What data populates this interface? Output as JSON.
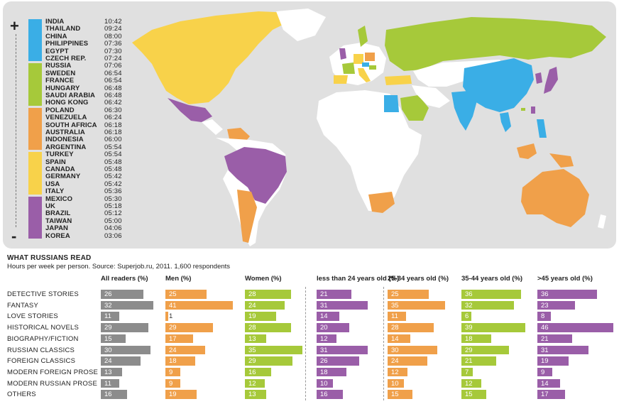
{
  "map": {
    "plus_sign": "+",
    "minus_sign": "-",
    "groups": [
      {
        "color": "#3aaee6",
        "countries": [
          {
            "name": "INDIA",
            "time": "10:42"
          },
          {
            "name": "THAILAND",
            "time": "09:24"
          },
          {
            "name": "CHINA",
            "time": "08:00"
          },
          {
            "name": "PHILIPPINES",
            "time": "07:36"
          },
          {
            "name": "EGYPT",
            "time": "07:30"
          },
          {
            "name": "CZECH REP.",
            "time": "07:24"
          }
        ]
      },
      {
        "color": "#a6c93a",
        "countries": [
          {
            "name": "RUSSIA",
            "time": "07:06"
          },
          {
            "name": "SWEDEN",
            "time": "06:54"
          },
          {
            "name": "FRANCE",
            "time": "06:54"
          },
          {
            "name": "HUNGARY",
            "time": "06:48"
          },
          {
            "name": "SAUDI ARABIA",
            "time": "06:48"
          },
          {
            "name": "HONG KONG",
            "time": "06:42"
          }
        ]
      },
      {
        "color": "#f0a04a",
        "countries": [
          {
            "name": "POLAND",
            "time": "06:30"
          },
          {
            "name": "VENEZUELA",
            "time": "06:24"
          },
          {
            "name": "SOUTH AFRICA",
            "time": "06:18"
          },
          {
            "name": "AUSTRALIA",
            "time": "06:18"
          },
          {
            "name": "INDONESIA",
            "time": "06:00"
          },
          {
            "name": "ARGENTINA",
            "time": "05:54"
          }
        ]
      },
      {
        "color": "#f8d24a",
        "countries": [
          {
            "name": "TURKEY",
            "time": "05:54"
          },
          {
            "name": "SPAIN",
            "time": "05:48"
          },
          {
            "name": "CANADA",
            "time": "05:48"
          },
          {
            "name": "GERMANY",
            "time": "05:42"
          },
          {
            "name": "USA",
            "time": "05:42"
          },
          {
            "name": "ITALY",
            "time": "05:36"
          }
        ]
      },
      {
        "color": "#9a5ea8",
        "countries": [
          {
            "name": "MEXICO",
            "time": "05:30"
          },
          {
            "name": "UK",
            "time": "05:18"
          },
          {
            "name": "BRAZIL",
            "time": "05:12"
          },
          {
            "name": "TAIWAN",
            "time": "05:00"
          },
          {
            "name": "JAPAN",
            "time": "04:06"
          },
          {
            "name": "KOREA",
            "time": "03:06"
          }
        ]
      }
    ]
  },
  "chart_data": {
    "type": "bar",
    "title": "WHAT RUSSIANS READ",
    "subtitle": "Hours per week per person. Source: Superjob.ru, 2011. 1,600 respondents",
    "categories": [
      "DETECTIVE STORIES",
      "FANTASY",
      "LOVE STORIES",
      "HISTORICAL NOVELS",
      "BIOGRAPHY/FICTION",
      "RUSSIAN CLASSICS",
      "FOREIGN CLASSICS",
      "MODERN FOREIGN PROSE",
      "MODERN RUSSIAN PROSE",
      "OTHERS"
    ],
    "series": [
      {
        "name": "All readers (%)",
        "color": "#8c8c8c",
        "values": [
          26,
          32,
          11,
          29,
          15,
          30,
          24,
          13,
          11,
          16
        ]
      },
      {
        "name": "Men  (%)",
        "color": "#f0a04a",
        "values": [
          25,
          41,
          1,
          29,
          17,
          24,
          18,
          9,
          9,
          19
        ]
      },
      {
        "name": "Women  (%)",
        "color": "#a6c93a",
        "values": [
          28,
          24,
          19,
          28,
          13,
          35,
          29,
          16,
          12,
          13
        ]
      },
      {
        "name": "less than 24 years old  (%)",
        "color": "#9a5ea8",
        "values": [
          21,
          31,
          14,
          20,
          12,
          31,
          26,
          18,
          10,
          16
        ]
      },
      {
        "name": "25-34 years old  (%)",
        "color": "#f0a04a",
        "values": [
          25,
          35,
          11,
          28,
          14,
          30,
          24,
          12,
          10,
          15
        ]
      },
      {
        "name": "35-44 years old  (%)",
        "color": "#a6c93a",
        "values": [
          36,
          32,
          6,
          39,
          18,
          29,
          21,
          7,
          12,
          15
        ]
      },
      {
        "name": ">45 years old  (%)",
        "color": "#9a5ea8",
        "values": [
          36,
          23,
          8,
          46,
          21,
          31,
          19,
          9,
          14,
          17
        ]
      }
    ]
  }
}
